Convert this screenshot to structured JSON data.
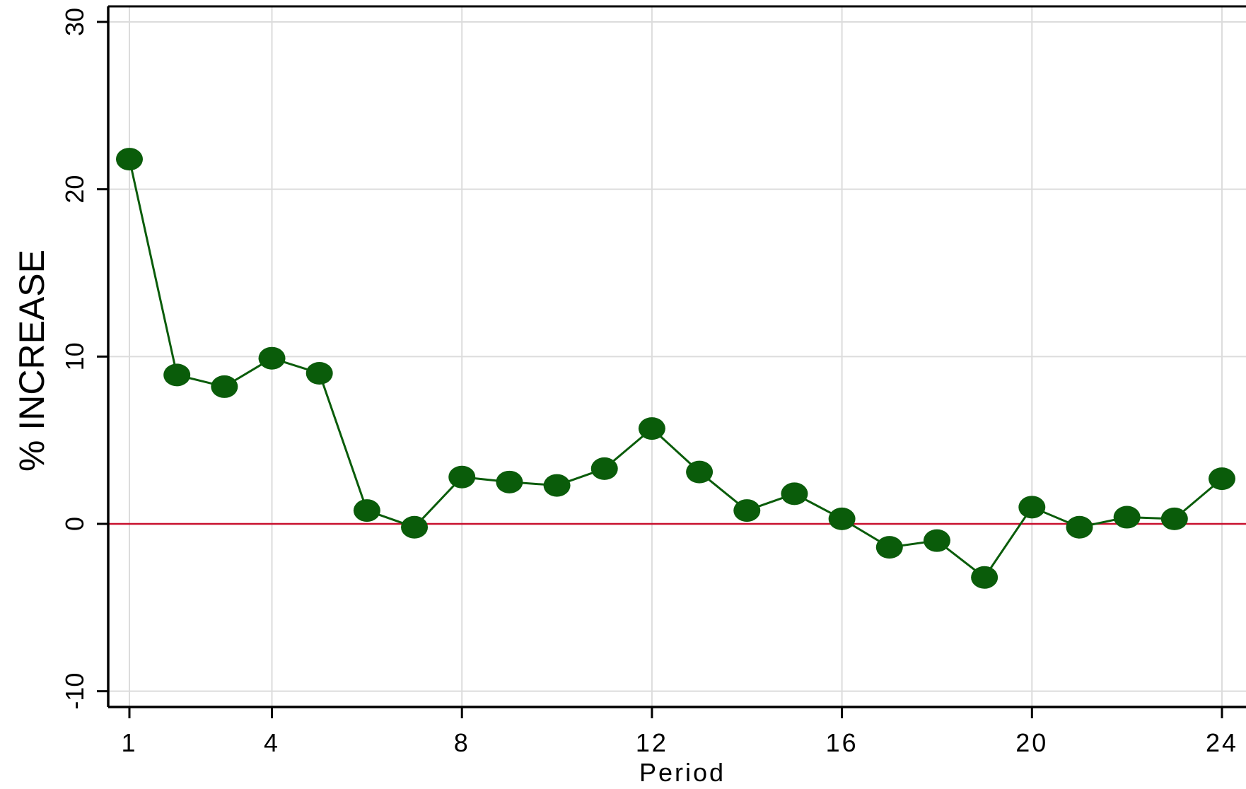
{
  "chart_data": {
    "type": "line",
    "title": "",
    "xlabel": "Period",
    "ylabel": "% INCREASE",
    "xlim": [
      1,
      24
    ],
    "ylim": [
      -10,
      30
    ],
    "x_ticks": [
      1,
      4,
      8,
      12,
      16,
      20,
      24
    ],
    "y_ticks": [
      -10,
      0,
      10,
      20,
      30
    ],
    "x_tick_labels": [
      "1",
      "4",
      "8",
      "12",
      "16",
      "20",
      "24"
    ],
    "y_tick_labels": [
      "-10",
      "0",
      "10",
      "20",
      "30"
    ],
    "grid": true,
    "reference_line": {
      "y": 0,
      "color": "#c8102e"
    },
    "series": [
      {
        "color": "#0a5c0a",
        "marker": "filled-circle",
        "x": [
          1,
          2,
          3,
          4,
          5,
          6,
          7,
          8,
          9,
          10,
          11,
          12,
          13,
          14,
          15,
          16,
          17,
          18,
          19,
          20,
          21,
          22,
          23,
          24
        ],
        "y": [
          21.8,
          8.9,
          8.2,
          9.9,
          9.0,
          0.8,
          -0.2,
          2.8,
          2.5,
          2.3,
          3.3,
          5.7,
          3.1,
          0.8,
          1.8,
          0.3,
          -1.4,
          -1.0,
          -3.2,
          1.0,
          -0.2,
          0.4,
          0.3,
          2.7
        ]
      }
    ]
  }
}
